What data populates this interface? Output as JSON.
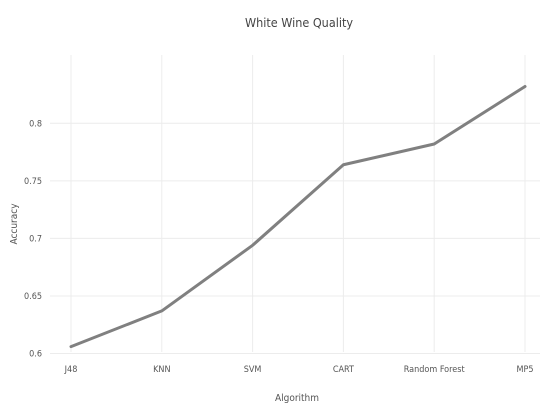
{
  "chart_data": {
    "type": "line",
    "title": "White Wine Quality",
    "xlabel": "Algorithm",
    "ylabel": "Accuracy",
    "categories": [
      "J48",
      "KNN",
      "SVM",
      "CART",
      "Random Forest",
      "MP5"
    ],
    "series": [
      {
        "values": [
          0.606,
          0.637,
          0.694,
          0.764,
          0.782,
          0.832
        ],
        "color": "#808080"
      }
    ],
    "ylim": [
      0.59,
      0.855
    ],
    "yticks": [
      0.6,
      0.65,
      0.7,
      0.75,
      0.8
    ],
    "ytick_labels": [
      "0.6",
      "0.65",
      "0.7",
      "0.75",
      "0.8"
    ],
    "grid": true,
    "legend": "none"
  }
}
